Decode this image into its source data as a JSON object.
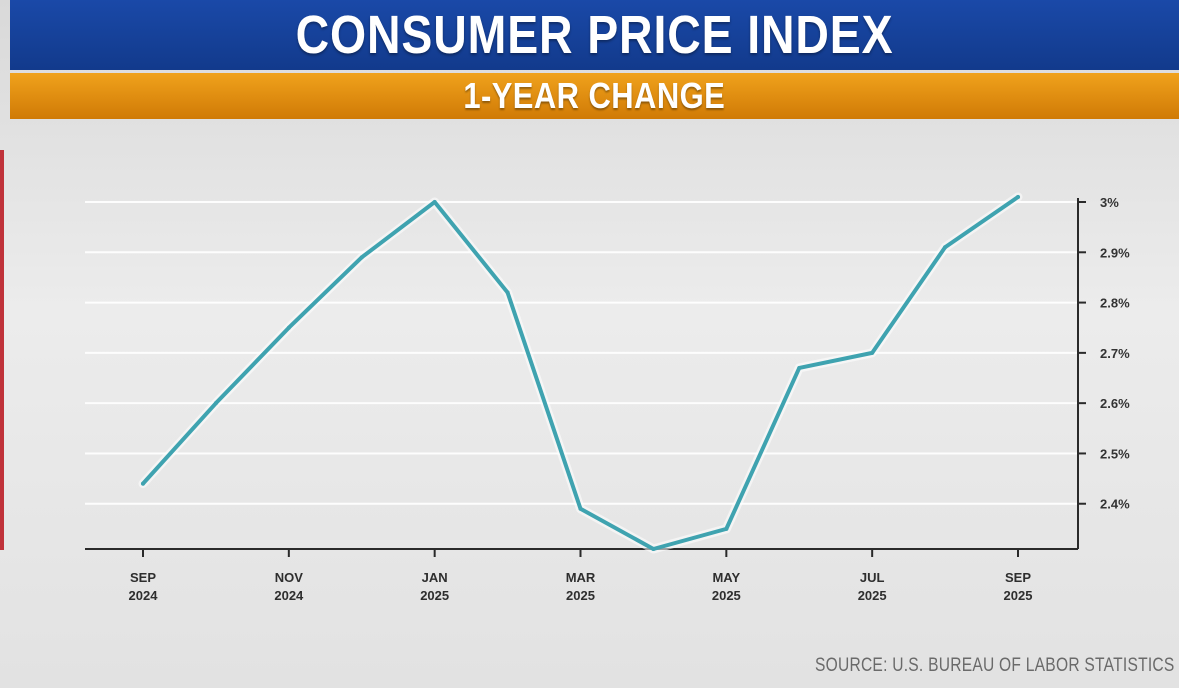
{
  "header": {
    "title": "CONSUMER PRICE INDEX",
    "subtitle": "1-YEAR CHANGE"
  },
  "footer": {
    "source": "SOURCE: U.S. BUREAU OF LABOR STATISTICS"
  },
  "colors": {
    "title_bar": "#1a49a8",
    "subtitle_bar": "#e8900f",
    "line": "#3fa3b0"
  },
  "chart_data": {
    "type": "line",
    "title": "CONSUMER PRICE INDEX",
    "subtitle": "1-YEAR CHANGE",
    "x": [
      "Sep 2024",
      "Oct 2024",
      "Nov 2024",
      "Dec 2024",
      "Jan 2025",
      "Feb 2025",
      "Mar 2025",
      "Apr 2025",
      "May 2025",
      "Jun 2025",
      "Jul 2025",
      "Aug 2025",
      "Sep 2025"
    ],
    "series": [
      {
        "name": "CPI 1-year change (%)",
        "values": [
          2.44,
          2.6,
          2.75,
          2.89,
          3.0,
          2.82,
          2.39,
          2.31,
          2.35,
          2.67,
          2.7,
          2.91,
          3.01
        ]
      }
    ],
    "x_tick_labels": [
      {
        "index": 0,
        "line1": "SEP",
        "line2": "2024"
      },
      {
        "index": 2,
        "line1": "NOV",
        "line2": "2024"
      },
      {
        "index": 4,
        "line1": "JAN",
        "line2": "2025"
      },
      {
        "index": 6,
        "line1": "MAR",
        "line2": "2025"
      },
      {
        "index": 8,
        "line1": "MAY",
        "line2": "2025"
      },
      {
        "index": 10,
        "line1": "JUL",
        "line2": "2025"
      },
      {
        "index": 12,
        "line1": "SEP",
        "line2": "2025"
      }
    ],
    "y_ticks": [
      {
        "value": 3.0,
        "label": "3%"
      },
      {
        "value": 2.9,
        "label": "2.9%"
      },
      {
        "value": 2.8,
        "label": "2.8%"
      },
      {
        "value": 2.7,
        "label": "2.7%"
      },
      {
        "value": 2.6,
        "label": "2.6%"
      },
      {
        "value": 2.5,
        "label": "2.5%"
      },
      {
        "value": 2.4,
        "label": "2.4%"
      }
    ],
    "ylim": [
      2.31,
      3.0
    ],
    "yaxis_position": "right",
    "grid": true,
    "xlabel": "",
    "ylabel": ""
  }
}
